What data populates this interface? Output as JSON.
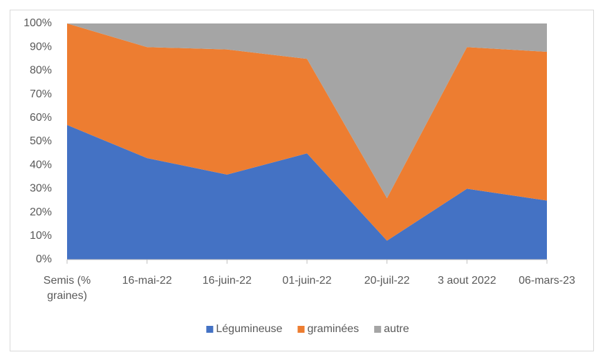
{
  "chart_data": {
    "type": "stacked_area",
    "categories": [
      "Semis (% graines)",
      "16-mai-22",
      "16-juin-22",
      "01-juin-22",
      "20-juil-22",
      "3 aout 2022",
      "06-mars-23"
    ],
    "series": [
      {
        "name": "Légumineuse",
        "color": "#4472c4",
        "values": [
          57,
          43,
          36,
          45,
          8,
          30,
          25
        ]
      },
      {
        "name": "graminées",
        "color": "#ed7d31",
        "values": [
          43,
          47,
          53,
          40,
          18,
          60,
          63
        ]
      },
      {
        "name": "autre",
        "color": "#a5a5a5",
        "values": [
          0,
          10,
          11,
          15,
          74,
          10,
          12
        ]
      }
    ],
    "ylim": [
      0,
      100
    ],
    "yticks": [
      {
        "value": 0,
        "label": "0%"
      },
      {
        "value": 10,
        "label": "10%"
      },
      {
        "value": 20,
        "label": "20%"
      },
      {
        "value": 30,
        "label": "30%"
      },
      {
        "value": 40,
        "label": "40%"
      },
      {
        "value": 50,
        "label": "50%"
      },
      {
        "value": 60,
        "label": "60%"
      },
      {
        "value": 70,
        "label": "70%"
      },
      {
        "value": 80,
        "label": "80%"
      },
      {
        "value": 90,
        "label": "90%"
      },
      {
        "value": 100,
        "label": "100%"
      }
    ],
    "legend": "bottom"
  }
}
